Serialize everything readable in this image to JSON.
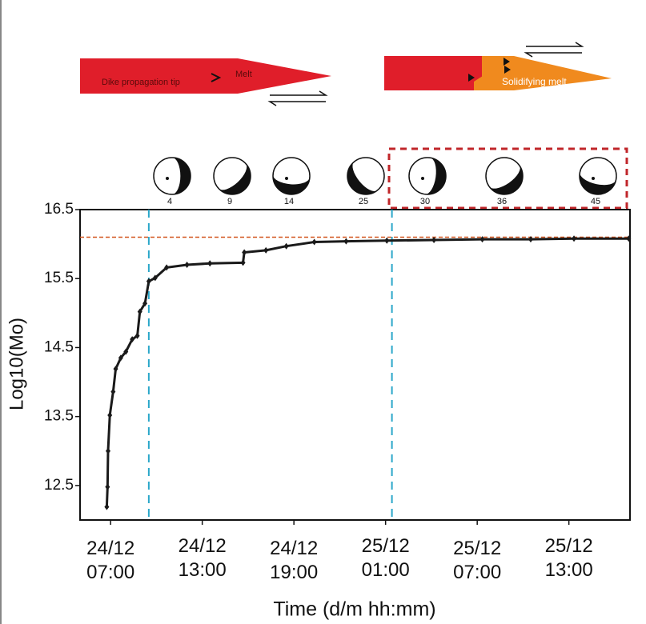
{
  "chart_data": {
    "type": "line",
    "ylabel": "Log10(Mo)",
    "xlabel": "Time (d/m hh:mm)",
    "diagram_labels": {
      "tip": "Dike propagation tip",
      "melt": "Melt",
      "solidifying": "Solidifying melt"
    },
    "mechanisms": [
      "4",
      "9",
      "14",
      "25",
      "30",
      "36",
      "45"
    ],
    "x": [
      "24/12 06:45",
      "24/12 06:48",
      "24/12 06:50",
      "24/12 06:57",
      "24/12 07:10",
      "24/12 07:20",
      "24/12 07:40",
      "24/12 08:00",
      "24/12 08:25",
      "24/12 08:45",
      "24/12 08:55",
      "24/12 09:15",
      "24/12 09:30",
      "24/12 09:55",
      "24/12 10:40",
      "24/12 12:00",
      "24/12 13:30",
      "24/12 15:40",
      "24/12 15:45",
      "24/12 17:10",
      "24/12 18:30",
      "24/12 20:20",
      "24/12 22:25",
      "25/12 01:05",
      "25/12 04:10",
      "25/12 07:20",
      "25/12 10:30",
      "25/12 13:20",
      "25/12 16:55"
    ],
    "series": [
      {
        "color": "#1a1a1a",
        "values": [
          12.19,
          12.48,
          13.0,
          13.52,
          13.86,
          14.19,
          14.35,
          14.44,
          14.62,
          14.67,
          15.02,
          15.14,
          15.46,
          15.51,
          15.66,
          15.7,
          15.72,
          15.73,
          15.88,
          15.91,
          15.97,
          16.03,
          16.04,
          16.05,
          16.06,
          16.07,
          16.07,
          16.08,
          16.08
        ]
      }
    ],
    "xlim": [
      "24/12 05:00",
      "25/12 17:00"
    ],
    "xticks": [
      "24/12 07:00",
      "24/12 13:00",
      "24/12 19:00",
      "25/12 01:00",
      "25/12 07:00",
      "25/12 13:00"
    ],
    "ylim": [
      12.0,
      16.5
    ],
    "yticks": [
      12.5,
      13.5,
      14.5,
      15.5,
      16.5
    ],
    "hlines": [
      {
        "value": 16.1,
        "color": "#d2551e"
      }
    ],
    "vlines": [
      {
        "value": "24/12 09:30",
        "color": "#2aa7c9"
      },
      {
        "value": "25/12 01:25",
        "color": "#2aa7c9"
      }
    ]
  }
}
